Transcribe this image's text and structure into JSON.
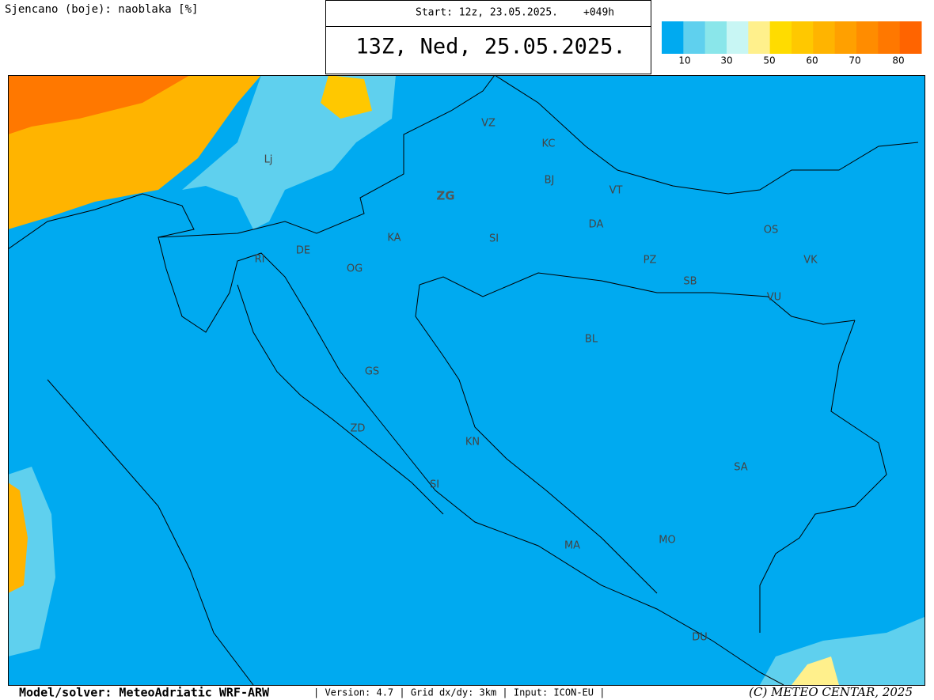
{
  "header": {
    "caption": "Sjencano (boje): naoblaka [%]",
    "start": "Start: 12z, 23.05.2025.",
    "lead": "+049h",
    "valid": "13Z, Ned, 25.05.2025."
  },
  "legend": {
    "colors": [
      "#00aaf0",
      "#5fd0ee",
      "#8ae6ea",
      "#c8f6f4",
      "#fff08c",
      "#ffdc00",
      "#ffc800",
      "#ffb400",
      "#ffa000",
      "#ff8c00",
      "#ff7800",
      "#ff6400"
    ],
    "labels": [
      "10",
      "30",
      "50",
      "60",
      "70",
      "80"
    ]
  },
  "places": [
    "VZ",
    "KC",
    "BJ",
    "VT",
    "ZG",
    "DA",
    "OS",
    "KA",
    "SI",
    "DE",
    "RI",
    "PZ",
    "VK",
    "OG",
    "SB",
    "VU",
    "BL",
    "GS",
    "ZD",
    "KN",
    "SA",
    "SI",
    "MA",
    "MO",
    "DU",
    "Lj"
  ],
  "footer": {
    "model": "Model/solver: MeteoAdriatic WRF-ARW",
    "info": "| Version: 4.7 | Grid dx/dy: 3km | Input: ICON-EU |",
    "copyright": "(C) METEO CENTAR, 2025"
  }
}
